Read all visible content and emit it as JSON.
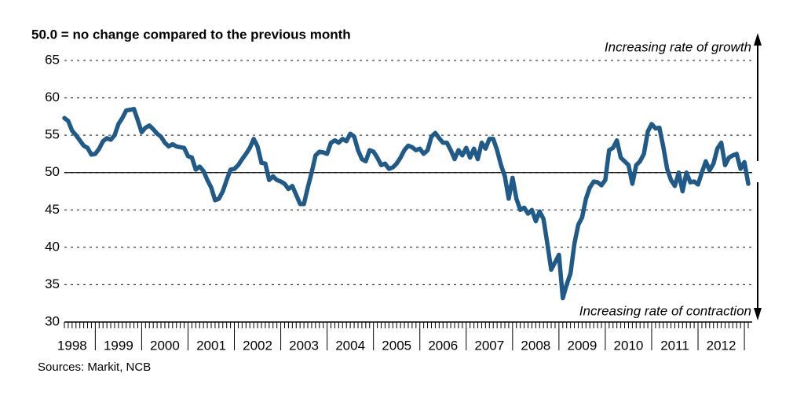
{
  "chart_data": {
    "type": "line",
    "title": "50.0 = no change compared to the previous month",
    "annotations": [
      "Increasing rate of growth",
      "Increasing rate of contraction"
    ],
    "source": "Sources: Markit, NCB",
    "categories": [
      null,
      null,
      "1998",
      null,
      null,
      null,
      null,
      null,
      null,
      null,
      null,
      null,
      null,
      null,
      "1999",
      null,
      null,
      null,
      null,
      null,
      null,
      null,
      null,
      null,
      null,
      null,
      "2000",
      null,
      null,
      null,
      null,
      null,
      null,
      null,
      null,
      null,
      null,
      null,
      "2001",
      null,
      null,
      null,
      null,
      null,
      null,
      null,
      null,
      null,
      null,
      null,
      "2002",
      null,
      null,
      null,
      null,
      null,
      null,
      null,
      null,
      null,
      null,
      null,
      "2003",
      null,
      null,
      null,
      null,
      null,
      null,
      null,
      null,
      null,
      null,
      null,
      "2004",
      null,
      null,
      null,
      null,
      null,
      null,
      null,
      null,
      null,
      null,
      null,
      "2005",
      null,
      null,
      null,
      null,
      null,
      null,
      null,
      null,
      null,
      null,
      null,
      "2006",
      null,
      null,
      null,
      null,
      null,
      null,
      null,
      null,
      null,
      null,
      null,
      "2007",
      null,
      null,
      null,
      null,
      null,
      null,
      null,
      null,
      null,
      null,
      null,
      "2008",
      null,
      null,
      null,
      null,
      null,
      null,
      null,
      null,
      null,
      null,
      null,
      "2009",
      null,
      null,
      null,
      null,
      null,
      null,
      null,
      null,
      null,
      null,
      null,
      "2010",
      null,
      null,
      null,
      null,
      null,
      null,
      null,
      null,
      null,
      null,
      null,
      "2011",
      null,
      null,
      null,
      null,
      null,
      null,
      null,
      null,
      null,
      null,
      null,
      "2012",
      null,
      null,
      null,
      null,
      null,
      null,
      null
    ],
    "series": [
      {
        "color": "#1f5a88",
        "values": [
          57.3,
          56.9,
          55.6,
          55.0,
          54.3,
          53.6,
          53.3,
          52.4,
          52.5,
          53.2,
          54.2,
          54.6,
          54.4,
          55.0,
          56.5,
          57.3,
          58.3,
          58.4,
          58.5,
          57.0,
          55.4,
          56.0,
          56.3,
          55.8,
          55.2,
          54.8,
          54.0,
          53.5,
          53.8,
          53.5,
          53.4,
          53.3,
          52.2,
          52.0,
          50.4,
          50.8,
          50.2,
          49.0,
          48.0,
          46.3,
          46.5,
          47.5,
          49.0,
          50.4,
          50.5,
          51.0,
          51.8,
          52.5,
          53.3,
          54.5,
          53.5,
          51.3,
          51.2,
          49.0,
          49.5,
          49.0,
          48.8,
          48.5,
          47.8,
          48.2,
          47.0,
          45.8,
          45.8,
          48.0,
          50.0,
          52.3,
          52.8,
          52.7,
          52.5,
          54.0,
          54.3,
          54.0,
          54.5,
          54.2,
          55.2,
          54.8,
          53.0,
          51.8,
          51.5,
          53.0,
          52.8,
          52.0,
          51.0,
          51.2,
          50.5,
          50.7,
          51.2,
          52.0,
          53.0,
          53.6,
          53.4,
          53.0,
          53.2,
          52.5,
          53.0,
          54.8,
          55.3,
          54.6,
          54.0,
          54.0,
          53.0,
          51.8,
          53.0,
          52.3,
          53.3,
          52.0,
          53.2,
          51.8,
          54.0,
          53.2,
          54.5,
          54.5,
          53.0,
          51.0,
          49.5,
          46.5,
          49.3,
          46.5,
          45.0,
          45.3,
          44.5,
          45.0,
          43.5,
          44.8,
          43.8,
          40.5,
          37.0,
          38.0,
          39.0,
          33.2,
          35.0,
          36.5,
          40.5,
          43.0,
          44.0,
          46.5,
          48.0,
          48.8,
          48.7,
          48.3,
          49.0,
          53.0,
          53.3,
          54.3,
          52.0,
          51.5,
          51.0,
          48.5,
          51.0,
          51.5,
          52.5,
          55.5,
          56.5,
          55.9,
          56.0,
          53.5,
          50.5,
          49.0,
          48.2,
          50.0,
          47.5,
          50.0,
          48.7,
          48.8,
          48.4,
          50.0,
          51.5,
          50.3,
          51.2,
          53.2,
          54.0,
          51.0,
          52.0,
          52.3,
          52.5,
          50.5,
          51.4,
          48.5
        ]
      }
    ],
    "ylim": [
      30,
      65
    ],
    "yticks": [
      30,
      35,
      40,
      45,
      50,
      55,
      60,
      65
    ],
    "grid": true,
    "hline": 50
  }
}
